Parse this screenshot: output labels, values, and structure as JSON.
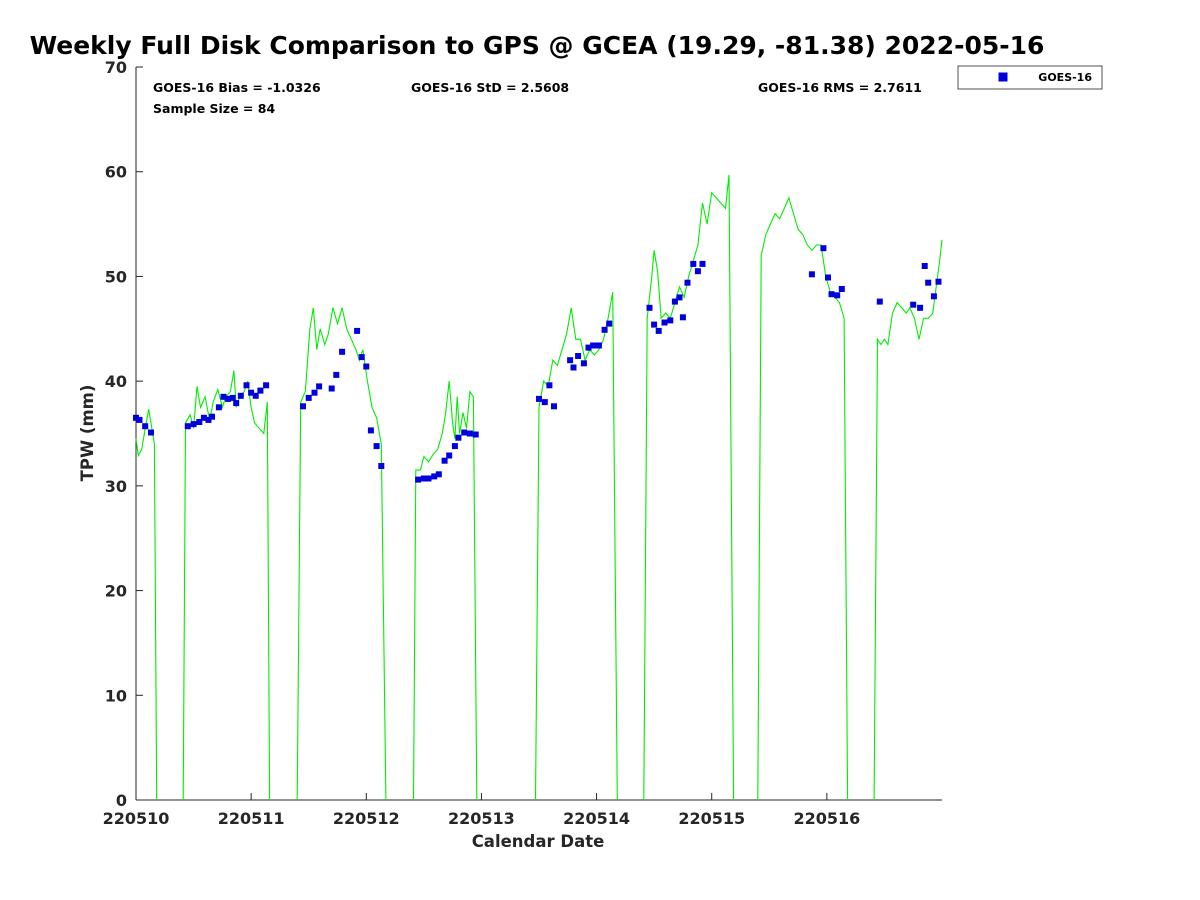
{
  "chart_data": {
    "type": "scatter",
    "title": "Weekly Full Disk Comparison to GPS @ GCEA (19.29, -81.38) 2022-05-16",
    "xlabel": "Calendar Date",
    "ylabel": "TPW (mm)",
    "xlim": [
      0,
      7
    ],
    "ylim": [
      0,
      70
    ],
    "x_ticks": [
      0,
      1,
      2,
      3,
      4,
      5,
      6
    ],
    "x_tick_labels": [
      "220510",
      "220511",
      "220512",
      "220513",
      "220514",
      "220515",
      "220516"
    ],
    "y_ticks": [
      0,
      10,
      20,
      30,
      40,
      50,
      60,
      70
    ],
    "grid": false,
    "legend_position": "outside-top-right",
    "stats": {
      "bias": "GOES-16 Bias = -1.0326",
      "std": "GOES-16 StD = 2.5608",
      "rms": "GOES-16 RMS = 2.7611",
      "sample": "Sample Size = 84"
    },
    "series": [
      {
        "name": "GOES-16",
        "style": "markers",
        "color": "#0000dd",
        "marker": "square",
        "points": [
          [
            0.0,
            36.5
          ],
          [
            0.03,
            36.3
          ],
          [
            0.08,
            35.7
          ],
          [
            0.13,
            35.1
          ],
          [
            0.45,
            35.7
          ],
          [
            0.5,
            35.9
          ],
          [
            0.55,
            36.1
          ],
          [
            0.59,
            36.5
          ],
          [
            0.63,
            36.3
          ],
          [
            0.66,
            36.6
          ],
          [
            0.72,
            37.5
          ],
          [
            0.76,
            38.5
          ],
          [
            0.8,
            38.3
          ],
          [
            0.84,
            38.4
          ],
          [
            0.87,
            37.9
          ],
          [
            0.91,
            38.6
          ],
          [
            0.96,
            39.6
          ],
          [
            1.0,
            38.9
          ],
          [
            1.04,
            38.6
          ],
          [
            1.08,
            39.1
          ],
          [
            1.13,
            39.6
          ],
          [
            1.45,
            37.6
          ],
          [
            1.5,
            38.4
          ],
          [
            1.55,
            38.9
          ],
          [
            1.59,
            39.5
          ],
          [
            1.7,
            39.3
          ],
          [
            1.74,
            40.6
          ],
          [
            1.79,
            42.8
          ],
          [
            1.92,
            44.8
          ],
          [
            1.96,
            42.3
          ],
          [
            2.0,
            41.4
          ],
          [
            2.04,
            35.3
          ],
          [
            2.09,
            33.8
          ],
          [
            2.13,
            31.9
          ],
          [
            2.45,
            30.6
          ],
          [
            2.5,
            30.7
          ],
          [
            2.54,
            30.7
          ],
          [
            2.59,
            30.9
          ],
          [
            2.63,
            31.1
          ],
          [
            2.68,
            32.4
          ],
          [
            2.72,
            32.9
          ],
          [
            2.77,
            33.8
          ],
          [
            2.8,
            34.6
          ],
          [
            2.85,
            35.1
          ],
          [
            2.9,
            35.0
          ],
          [
            2.95,
            34.9
          ],
          [
            3.5,
            38.3
          ],
          [
            3.55,
            38.0
          ],
          [
            3.59,
            39.6
          ],
          [
            3.63,
            37.6
          ],
          [
            3.77,
            42.0
          ],
          [
            3.8,
            41.3
          ],
          [
            3.84,
            42.4
          ],
          [
            3.89,
            41.7
          ],
          [
            3.93,
            43.2
          ],
          [
            3.97,
            43.4
          ],
          [
            4.02,
            43.4
          ],
          [
            4.07,
            44.9
          ],
          [
            4.11,
            45.5
          ],
          [
            4.46,
            47.0
          ],
          [
            4.5,
            45.4
          ],
          [
            4.54,
            44.8
          ],
          [
            4.59,
            45.6
          ],
          [
            4.64,
            45.8
          ],
          [
            4.68,
            47.6
          ],
          [
            4.72,
            48.0
          ],
          [
            4.75,
            46.1
          ],
          [
            4.79,
            49.4
          ],
          [
            4.84,
            51.2
          ],
          [
            4.88,
            50.5
          ],
          [
            4.92,
            51.2
          ],
          [
            5.87,
            50.2
          ],
          [
            5.97,
            52.7
          ],
          [
            6.01,
            49.9
          ],
          [
            6.04,
            48.3
          ],
          [
            6.09,
            48.2
          ],
          [
            6.13,
            48.8
          ],
          [
            6.46,
            47.6
          ],
          [
            6.75,
            47.3
          ],
          [
            6.81,
            47.0
          ],
          [
            6.85,
            51.0
          ],
          [
            6.88,
            49.4
          ],
          [
            6.93,
            48.1
          ],
          [
            6.97,
            49.5
          ]
        ]
      },
      {
        "style": "line",
        "color": "#00ee00",
        "segments": [
          [
            [
              0.0,
              34.5
            ],
            [
              0.02,
              32.9
            ],
            [
              0.05,
              33.5
            ],
            [
              0.08,
              35.5
            ],
            [
              0.11,
              37.3
            ],
            [
              0.13,
              36.0
            ],
            [
              0.16,
              34.0
            ],
            [
              0.18,
              0.0
            ]
          ],
          [
            [
              0.41,
              0.0
            ],
            [
              0.43,
              36.0
            ],
            [
              0.47,
              36.8
            ],
            [
              0.5,
              35.5
            ],
            [
              0.53,
              39.5
            ],
            [
              0.56,
              37.5
            ],
            [
              0.6,
              38.5
            ],
            [
              0.64,
              36.2
            ],
            [
              0.67,
              38.0
            ],
            [
              0.71,
              39.2
            ],
            [
              0.75,
              37.5
            ],
            [
              0.78,
              38.5
            ],
            [
              0.82,
              39.0
            ],
            [
              0.85,
              41.0
            ],
            [
              0.87,
              37.5
            ],
            [
              0.9,
              38.5
            ],
            [
              0.94,
              39.0
            ],
            [
              0.97,
              40.0
            ],
            [
              1.0,
              37.5
            ],
            [
              1.03,
              36.0
            ],
            [
              1.07,
              35.5
            ],
            [
              1.11,
              35.0
            ],
            [
              1.14,
              38.0
            ],
            [
              1.16,
              0.0
            ]
          ],
          [
            [
              1.4,
              0.0
            ],
            [
              1.43,
              38.0
            ],
            [
              1.47,
              39.0
            ],
            [
              1.51,
              45.0
            ],
            [
              1.54,
              47.0
            ],
            [
              1.57,
              43.0
            ],
            [
              1.6,
              45.0
            ],
            [
              1.64,
              43.5
            ],
            [
              1.67,
              44.5
            ],
            [
              1.71,
              47.0
            ],
            [
              1.75,
              45.5
            ],
            [
              1.79,
              47.0
            ],
            [
              1.83,
              45.0
            ],
            [
              1.87,
              44.0
            ],
            [
              1.91,
              43.0
            ],
            [
              1.94,
              42.0
            ],
            [
              1.97,
              43.0
            ],
            [
              2.01,
              40.0
            ],
            [
              2.05,
              37.5
            ],
            [
              2.09,
              36.5
            ],
            [
              2.13,
              34.0
            ],
            [
              2.17,
              0.0
            ]
          ],
          [
            [
              2.41,
              0.0
            ],
            [
              2.43,
              31.5
            ],
            [
              2.47,
              31.5
            ],
            [
              2.5,
              32.8
            ],
            [
              2.54,
              32.3
            ],
            [
              2.58,
              33.0
            ],
            [
              2.62,
              33.5
            ],
            [
              2.66,
              35.0
            ],
            [
              2.69,
              37.0
            ],
            [
              2.72,
              40.0
            ],
            [
              2.75,
              36.0
            ],
            [
              2.77,
              34.5
            ],
            [
              2.79,
              38.5
            ],
            [
              2.81,
              35.0
            ],
            [
              2.84,
              37.0
            ],
            [
              2.87,
              35.5
            ],
            [
              2.9,
              39.0
            ],
            [
              2.93,
              38.5
            ],
            [
              2.96,
              0.0
            ]
          ],
          [
            [
              3.47,
              0.0
            ],
            [
              3.5,
              37.5
            ],
            [
              3.54,
              40.0
            ],
            [
              3.58,
              39.5
            ],
            [
              3.62,
              42.0
            ],
            [
              3.66,
              41.5
            ],
            [
              3.7,
              43.0
            ],
            [
              3.74,
              44.5
            ],
            [
              3.78,
              47.0
            ],
            [
              3.82,
              44.0
            ],
            [
              3.86,
              44.0
            ],
            [
              3.9,
              42.0
            ],
            [
              3.94,
              43.0
            ],
            [
              3.98,
              42.5
            ],
            [
              4.02,
              43.0
            ],
            [
              4.06,
              44.0
            ],
            [
              4.1,
              46.0
            ],
            [
              4.14,
              48.5
            ],
            [
              4.18,
              0.0
            ]
          ],
          [
            [
              4.41,
              0.0
            ],
            [
              4.44,
              46.0
            ],
            [
              4.48,
              50.0
            ],
            [
              4.5,
              52.5
            ],
            [
              4.53,
              50.5
            ],
            [
              4.56,
              46.0
            ],
            [
              4.6,
              46.5
            ],
            [
              4.64,
              46.0
            ],
            [
              4.68,
              47.5
            ],
            [
              4.72,
              49.0
            ],
            [
              4.76,
              48.0
            ],
            [
              4.8,
              50.0
            ],
            [
              4.84,
              51.5
            ],
            [
              4.88,
              53.0
            ],
            [
              4.92,
              57.0
            ],
            [
              4.96,
              55.0
            ],
            [
              5.0,
              58.0
            ],
            [
              5.04,
              57.5
            ],
            [
              5.08,
              57.0
            ],
            [
              5.12,
              56.5
            ],
            [
              5.15,
              59.7
            ],
            [
              5.19,
              0.0
            ]
          ],
          [
            [
              5.4,
              0.0
            ],
            [
              5.43,
              52.0
            ],
            [
              5.47,
              54.0
            ],
            [
              5.51,
              55.0
            ],
            [
              5.55,
              56.0
            ],
            [
              5.59,
              55.5
            ],
            [
              5.63,
              56.5
            ],
            [
              5.67,
              57.5
            ],
            [
              5.71,
              56.0
            ],
            [
              5.75,
              54.5
            ],
            [
              5.79,
              54.0
            ],
            [
              5.83,
              53.0
            ],
            [
              5.87,
              52.5
            ],
            [
              5.91,
              53.0
            ],
            [
              5.95,
              53.0
            ],
            [
              5.99,
              50.0
            ],
            [
              6.03,
              48.5
            ],
            [
              6.07,
              48.0
            ],
            [
              6.11,
              47.5
            ],
            [
              6.15,
              46.0
            ],
            [
              6.18,
              0.0
            ]
          ],
          [
            [
              6.41,
              0.0
            ],
            [
              6.44,
              44.0
            ],
            [
              6.47,
              43.5
            ],
            [
              6.5,
              44.0
            ],
            [
              6.53,
              43.5
            ],
            [
              6.57,
              46.5
            ],
            [
              6.61,
              47.5
            ],
            [
              6.65,
              47.0
            ],
            [
              6.69,
              46.5
            ],
            [
              6.72,
              47.0
            ],
            [
              6.76,
              46.0
            ],
            [
              6.8,
              44.0
            ],
            [
              6.84,
              46.0
            ],
            [
              6.88,
              46.0
            ],
            [
              6.92,
              46.5
            ],
            [
              6.95,
              49.0
            ],
            [
              6.98,
              51.5
            ],
            [
              7.0,
              53.5
            ]
          ]
        ]
      }
    ]
  }
}
